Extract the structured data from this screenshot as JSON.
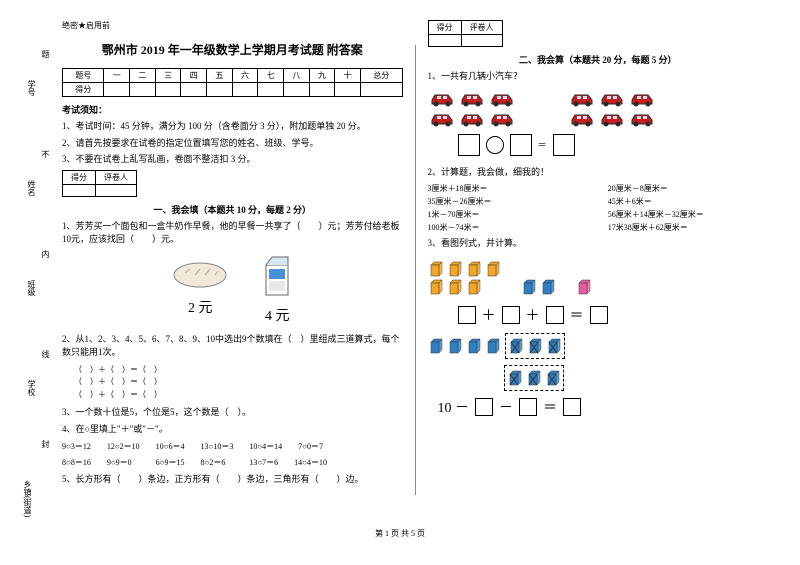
{
  "binding": {
    "labels": [
      "乡镇(街道)",
      "学校",
      "班级",
      "姓名",
      "学号"
    ],
    "marks": [
      "封",
      "线",
      "内",
      "不",
      "题"
    ]
  },
  "confidential": "绝密★启用前",
  "title": "鄂州市 2019 年一年级数学上学期月考试题 附答案",
  "scoreTable": {
    "headers": [
      "题号",
      "一",
      "二",
      "三",
      "四",
      "五",
      "六",
      "七",
      "八",
      "九",
      "十",
      "总分"
    ],
    "row2": "得分"
  },
  "noticeHead": "考试须知：",
  "notices": [
    "1、考试时间：45 分钟，满分为 100 分（含卷面分 3 分），附加题单独 20 分。",
    "2、请首先按要求在试卷的指定位置填写您的姓名、班级、学号。",
    "3、不要在试卷上乱写乱画，卷面不整洁扣 3 分。"
  ],
  "smallScore": {
    "c1": "得分",
    "c2": "评卷人"
  },
  "sec1Title": "一、我会填（本题共 10 分，每题 2 分）",
  "q1_1": "1、芳芳买一个面包和一盒牛奶作早餐，他的早餐一共享了（　　）元；芳芳付给老板10元，应该找回（　　）元。",
  "price1": "2 元",
  "price2": "4 元",
  "q1_2": "2、从1、2、3、4、5、6、7、8、9、10中选出9个数填在（　）里组成三道算式，每个数只能用1次。",
  "fillLines": [
    "（　）＋（　）＝（　）",
    "（　）＋（　）＝（　）",
    "（　）＋（　）＝（　）"
  ],
  "q1_3": "3、一个数十位是5，个位是5，这个数是（　）。",
  "q1_4": "4、在○里填上\"＋\"或\"－\"。",
  "q1_4_lines": [
    "9○3＝12　　12○2＝10　　10○6＝4　　13○10＝3　　10○4＝14　　7○0＝7",
    "8○8＝16　　9○9＝0　　　6○9＝15　　8○2＝6　　　13○7＝6　　14○4＝10"
  ],
  "q1_5": "5、长方形有（　　）条边，正方形有（　　）条边，三角形有（　　）边。",
  "sec2Title": "二、我会算（本题共 20 分，每题 5 分）",
  "q2_1": "1、一共有几辆小汽车？",
  "q2_2": "2、计算题，我会做，细我的！",
  "calcItems": [
    "3厘米＋18厘米＝",
    "20厘米－8厘米＝",
    "35厘米－26厘米＝",
    "45米＋6米＝",
    "1米－70厘米＝",
    "56厘米＋14厘米－32厘米＝",
    "100米－74米＝",
    "17米38厘米＋62厘米＝"
  ],
  "q2_3": "3、看图列式，并计算。",
  "eqSym": "＝",
  "plus": "＋",
  "eq10": "10 －",
  "minus": "－",
  "footer": "第 1 页 共 5 页",
  "colors": {
    "carRed": "#c41e1e",
    "carDark": "#2a2a2a",
    "cubeOrange": "#f5a623",
    "cubeBlue": "#2e7fc4",
    "cubePink": "#e85a9e",
    "cubeCross": "#888"
  }
}
